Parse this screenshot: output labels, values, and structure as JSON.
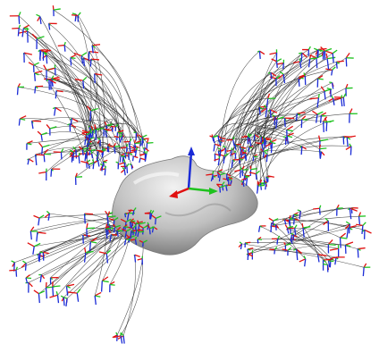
{
  "scene": {
    "background": "#ffffff",
    "object": {
      "shape": "smooth-blob",
      "fill_light": "#f2f2f2",
      "fill_mid": "#bfbfbf",
      "fill_dark": "#6f6f6f",
      "outline": "#7a7a7a"
    },
    "axes": {
      "x_color": "#e01010",
      "y_color": "#1ec21e",
      "z_color": "#1a2bd6"
    },
    "trajectory_color": "#111111",
    "clusters": [
      "cluster-top-left",
      "cluster-top-right",
      "cluster-bottom-left",
      "cluster-bottom-right",
      "cluster-left-mid"
    ]
  }
}
